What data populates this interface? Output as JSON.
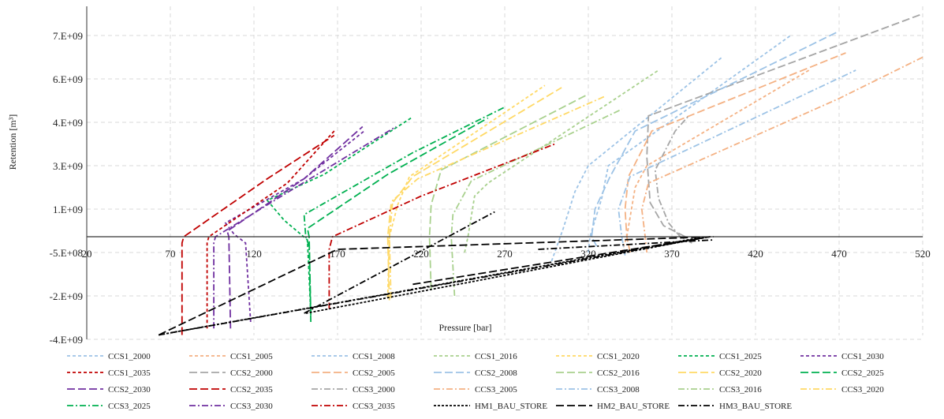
{
  "chart_data": {
    "type": "line",
    "title": "",
    "xlabel": "Pressure [bar]",
    "ylabel": "Retention [m³]",
    "xlim": [
      20,
      520
    ],
    "ylim": [
      -4000000000,
      8000000000
    ],
    "x_ticks": [
      20,
      70,
      120,
      170,
      220,
      270,
      320,
      370,
      420,
      470,
      520
    ],
    "y_ticks": [
      {
        "value": 7000000000,
        "label": "7.E+09"
      },
      {
        "value": 6000000000,
        "label": "6.E+09"
      },
      {
        "value": 4000000000,
        "label": "4.E+09"
      },
      {
        "value": 3000000000,
        "label": "3.E+09"
      },
      {
        "value": 1000000000,
        "label": "1.E+09"
      },
      {
        "value": -500000000,
        "label": "-5.E+08"
      },
      {
        "value": -2000000000,
        "label": "-2.E+09"
      },
      {
        "value": -4000000000,
        "label": "-4.E+09"
      }
    ],
    "grid": true,
    "legend_position": "bottom",
    "series": [
      {
        "name": "CCS1_2000",
        "color": "#9dc3e6",
        "dash": "dash",
        "x": [
          320,
          321,
          328,
          332,
          441
        ],
        "y": [
          -500000000,
          0,
          1500000000,
          3000000000,
          7000000000
        ]
      },
      {
        "name": "CCS1_2005",
        "color": "#f4b183",
        "dash": "dash",
        "x": [
          340,
          343,
          348,
          355,
          452
        ],
        "y": [
          -500000000,
          0,
          2000000000,
          3000000000,
          6200000000
        ]
      },
      {
        "name": "CCS1_2008",
        "color": "#9dc3e6",
        "dash": "dash",
        "x": [
          298,
          305,
          312,
          320,
          400
        ],
        "y": [
          -800000000,
          300000000,
          1800000000,
          3000000000,
          6500000000
        ]
      },
      {
        "name": "CCS1_2016",
        "color": "#a9d18e",
        "dash": "dash",
        "x": [
          246,
          248,
          252,
          260,
          362
        ],
        "y": [
          -500000000,
          0,
          1600000000,
          2200000000,
          6200000000
        ]
      },
      {
        "name": "CCS1_2020",
        "color": "#ffd966",
        "dash": "dash",
        "x": [
          200,
          201,
          206,
          213,
          294
        ],
        "y": [
          -2100000000,
          0,
          1200000000,
          2500000000,
          5700000000
        ]
      },
      {
        "name": "CCS1_2025",
        "color": "#00b050",
        "dash": "dash",
        "x": [
          154,
          152,
          138,
          128,
          162,
          214
        ],
        "y": [
          -2800000000,
          -100000000,
          600000000,
          1400000000,
          2600000000,
          4200000000
        ]
      },
      {
        "name": "CCS1_2030",
        "color": "#7030a0",
        "dash": "dash",
        "x": [
          118,
          115,
          108,
          103,
          150,
          186
        ],
        "y": [
          -3200000000,
          -200000000,
          100000000,
          500000000,
          2400000000,
          3800000000
        ]
      },
      {
        "name": "CCS1_2035",
        "color": "#c00000",
        "dash": "dash",
        "x": [
          92,
          92,
          93,
          140,
          168
        ],
        "y": [
          -3500000000,
          -200000000,
          0,
          2200000000,
          3800000000
        ]
      },
      {
        "name": "CCS2_2000",
        "color": "#a6a6a6",
        "dash": "longdash",
        "x": [
          378,
          365,
          357,
          355,
          356,
          520
        ],
        "y": [
          0,
          400000000,
          1300000000,
          3200000000,
          4300000000,
          7500000000
        ]
      },
      {
        "name": "CCS2_2005",
        "color": "#f4b183",
        "dash": "longdash",
        "x": [
          345,
          343,
          342,
          344,
          358,
          474
        ],
        "y": [
          -500000000,
          0,
          1000000000,
          2500000000,
          3800000000,
          6600000000
        ]
      },
      {
        "name": "CCS2_2008",
        "color": "#9dc3e6",
        "dash": "longdash",
        "x": [
          325,
          322,
          324,
          333,
          348,
          470
        ],
        "y": [
          -300000000,
          0,
          1000000000,
          2500000000,
          3800000000,
          7100000000
        ]
      },
      {
        "name": "CCS2_2016",
        "color": "#a9d18e",
        "dash": "longdash",
        "x": [
          226,
          225,
          226,
          232,
          320
        ],
        "y": [
          -1800000000,
          0,
          1200000000,
          2800000000,
          5300000000
        ]
      },
      {
        "name": "CCS2_2020",
        "color": "#ffd966",
        "dash": "longdash",
        "x": [
          201,
          200,
          202,
          215,
          304
        ],
        "y": [
          -2200000000,
          0,
          1200000000,
          2500000000,
          5600000000
        ]
      },
      {
        "name": "CCS2_2025",
        "color": "#00b050",
        "dash": "longdash",
        "x": [
          154,
          153,
          152,
          200,
          260
        ],
        "y": [
          -2900000000,
          0,
          300000000,
          2600000000,
          4200000000
        ]
      },
      {
        "name": "CCS2_2030",
        "color": "#7030a0",
        "dash": "longdash",
        "x": [
          106,
          105,
          104,
          150,
          185
        ],
        "y": [
          -3500000000,
          0,
          200000000,
          2400000000,
          3900000000
        ]
      },
      {
        "name": "CCS2_2035",
        "color": "#c00000",
        "dash": "longdash",
        "x": [
          77,
          77,
          78,
          128,
          168
        ],
        "y": [
          -3800000000,
          -200000000,
          0,
          2400000000,
          3700000000
        ]
      },
      {
        "name": "CCS3_2000",
        "color": "#a6a6a6",
        "dash": "dashdot",
        "x": [
          382,
          375,
          368,
          362,
          360,
          372,
          380
        ],
        "y": [
          -200000000,
          0,
          500000000,
          1500000000,
          2800000000,
          3800000000,
          4300000000
        ]
      },
      {
        "name": "CCS3_2005",
        "color": "#f4b183",
        "dash": "dashdot",
        "x": [
          355,
          354,
          352,
          356,
          470,
          530
        ],
        "y": [
          -500000000,
          0,
          1000000000,
          2200000000,
          5100000000,
          6500000000
        ]
      },
      {
        "name": "CCS3_2008",
        "color": "#9dc3e6",
        "dash": "dashdot",
        "x": [
          342,
          340,
          338,
          345,
          480
        ],
        "y": [
          -600000000,
          0,
          1000000000,
          2500000000,
          6200000000
        ]
      },
      {
        "name": "CCS3_2016",
        "color": "#a9d18e",
        "dash": "dashdot",
        "x": [
          240,
          238,
          239,
          250,
          340
        ],
        "y": [
          -2000000000,
          0,
          800000000,
          2300000000,
          4600000000
        ]
      },
      {
        "name": "CCS3_2020",
        "color": "#ffd966",
        "dash": "dashdot",
        "x": [
          202,
          201,
          203,
          218,
          330
        ],
        "y": [
          -2100000000,
          0,
          1400000000,
          2400000000,
          5200000000
        ]
      },
      {
        "name": "CCS3_2025",
        "color": "#00b050",
        "dash": "dashdot",
        "x": [
          154,
          153,
          151,
          150,
          215,
          270
        ],
        "y": [
          -3200000000,
          -300000000,
          0,
          800000000,
          3300000000,
          4700000000
        ]
      },
      {
        "name": "CCS3_2030",
        "color": "#7030a0",
        "dash": "dashdot",
        "x": [
          96,
          96,
          97,
          145,
          205
        ],
        "y": [
          -3500000000,
          -200000000,
          0,
          2000000000,
          3900000000
        ]
      },
      {
        "name": "CCS3_2035",
        "color": "#c00000",
        "dash": "dashdot",
        "x": [
          165,
          165,
          167,
          220,
          300
        ],
        "y": [
          -2600000000,
          -400000000,
          0,
          1600000000,
          3500000000
        ]
      },
      {
        "name": "HM1_BAU_STORE",
        "color": "#000000",
        "dash": "dense",
        "x": [
          63,
          390
        ],
        "y": [
          -3800000000,
          0
        ]
      },
      {
        "name": "HM2_BAU_STORE",
        "color": "#000000",
        "dash": "longdash",
        "x": [
          63,
          170,
          395
        ],
        "y": [
          -3800000000,
          -400000000,
          0
        ]
      },
      {
        "name": "HM3_BAU_STORE",
        "color": "#000000",
        "dash": "dashdot",
        "x": [
          63,
          393
        ],
        "y": [
          -3800000000,
          0
        ]
      },
      {
        "name": "",
        "color": "#000000",
        "dash": "dashdot",
        "x": [
          290,
          395
        ],
        "y": [
          -400000000,
          -100000000
        ]
      }
    ],
    "extra_lines": [
      {
        "color": "#000000",
        "dash": "dashdot",
        "x": [
          150,
          264
        ],
        "y": [
          -2800000000,
          900000000
        ]
      },
      {
        "color": "#000000",
        "dash": "dense",
        "x": [
          151,
          392
        ],
        "y": [
          -2800000000,
          0
        ]
      },
      {
        "color": "#000000",
        "dash": "longdash",
        "x": [
          215,
          393
        ],
        "y": [
          -1600000000,
          0
        ]
      }
    ]
  }
}
